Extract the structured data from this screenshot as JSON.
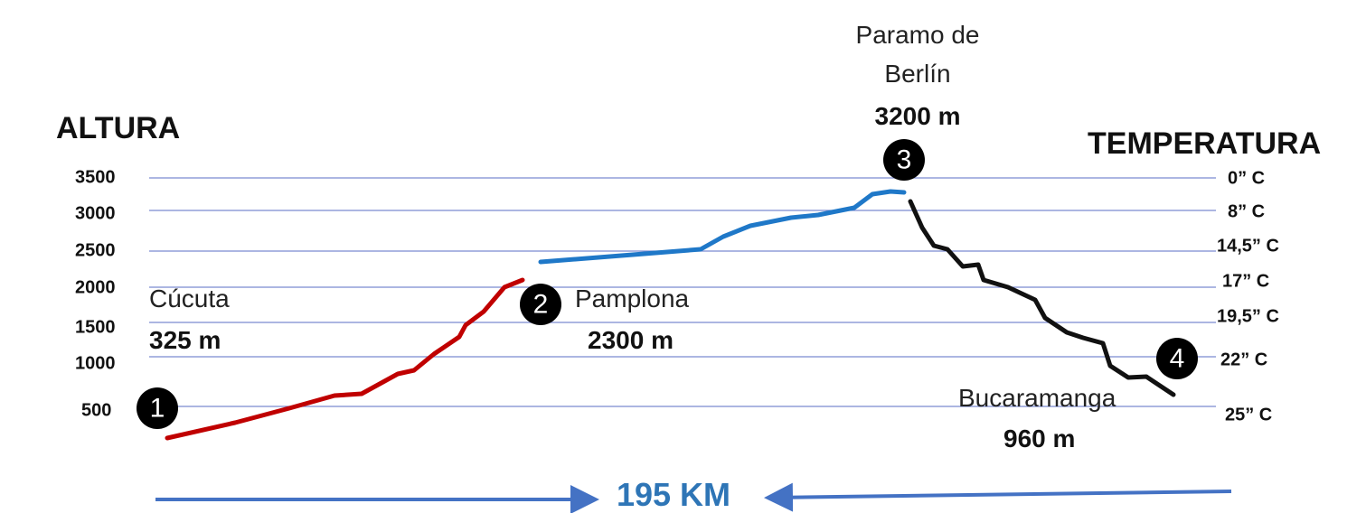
{
  "title_left": "ALTURA",
  "title_right": "TEMPERATURA",
  "altitude_ticks": [
    "3500",
    "3000",
    "2500",
    "2000",
    "1500",
    "1000",
    "500"
  ],
  "temperature_ticks": [
    "0” C",
    "8” C",
    "14,5” C",
    "17” C",
    "19,5” C",
    "22” C",
    "25” C"
  ],
  "points": [
    {
      "number": "1",
      "name": "Cúcuta",
      "altitude": "325 m"
    },
    {
      "number": "2",
      "name": "Pamplona",
      "altitude": "2300 m"
    },
    {
      "number": "3",
      "name_lines": [
        "Paramo de",
        "Berlín"
      ],
      "altitude": "3200 m"
    },
    {
      "number": "4",
      "name": "Bucaramanga",
      "altitude": "960 m"
    }
  ],
  "distance": "195 KM"
}
